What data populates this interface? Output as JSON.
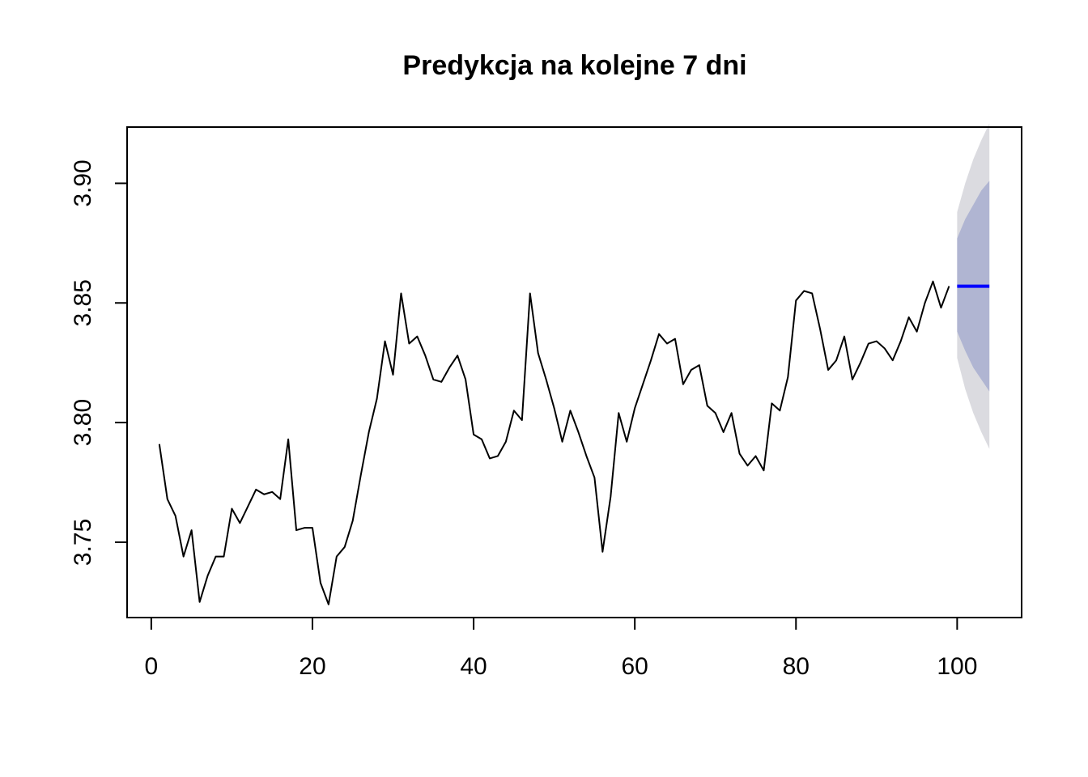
{
  "chart_data": {
    "type": "line",
    "title": "Predykcja na kolejne 7 dni",
    "xlabel": "",
    "ylabel": "",
    "xlim": [
      -3,
      108
    ],
    "ylim": [
      3.7185,
      3.9235
    ],
    "x_ticks": [
      0,
      20,
      40,
      60,
      80,
      100
    ],
    "x_tick_labels": [
      "0",
      "20",
      "40",
      "60",
      "80",
      "100"
    ],
    "y_ticks": [
      3.75,
      3.8,
      3.85,
      3.9
    ],
    "y_tick_labels": [
      "3.75",
      "3.80",
      "3.85",
      "3.90"
    ],
    "grid": false,
    "series": [
      {
        "role": "observed",
        "color": "#000000",
        "x": [
          1,
          2,
          3,
          4,
          5,
          6,
          7,
          8,
          9,
          10,
          11,
          12,
          13,
          14,
          15,
          16,
          17,
          18,
          19,
          20,
          21,
          22,
          23,
          24,
          25,
          26,
          27,
          28,
          29,
          30,
          31,
          32,
          33,
          34,
          35,
          36,
          37,
          38,
          39,
          40,
          41,
          42,
          43,
          44,
          45,
          46,
          47,
          48,
          49,
          50,
          51,
          52,
          53,
          54,
          55,
          56,
          57,
          58,
          59,
          60,
          61,
          62,
          63,
          64,
          65,
          66,
          67,
          68,
          69,
          70,
          71,
          72,
          73,
          74,
          75,
          76,
          77,
          78,
          79,
          80,
          81,
          82,
          83,
          84,
          85,
          86,
          87,
          88,
          89,
          90,
          91,
          92,
          93,
          94,
          95,
          96,
          97,
          98,
          99
        ],
        "values": [
          3.791,
          3.768,
          3.761,
          3.744,
          3.755,
          3.725,
          3.736,
          3.744,
          3.744,
          3.764,
          3.758,
          3.765,
          3.772,
          3.77,
          3.771,
          3.768,
          3.793,
          3.755,
          3.756,
          3.756,
          3.733,
          3.724,
          3.744,
          3.748,
          3.759,
          3.778,
          3.796,
          3.81,
          3.834,
          3.82,
          3.854,
          3.833,
          3.836,
          3.828,
          3.818,
          3.817,
          3.823,
          3.828,
          3.818,
          3.795,
          3.793,
          3.785,
          3.786,
          3.792,
          3.805,
          3.801,
          3.854,
          3.829,
          3.818,
          3.806,
          3.792,
          3.805,
          3.796,
          3.786,
          3.777,
          3.746,
          3.769,
          3.804,
          3.792,
          3.806,
          3.816,
          3.826,
          3.837,
          3.833,
          3.835,
          3.816,
          3.822,
          3.824,
          3.807,
          3.804,
          3.796,
          3.804,
          3.787,
          3.782,
          3.786,
          3.78,
          3.808,
          3.805,
          3.819,
          3.851,
          3.855,
          3.854,
          3.839,
          3.822,
          3.826,
          3.836,
          3.818,
          3.825,
          3.833,
          3.834,
          3.831,
          3.826,
          3.834,
          3.844,
          3.838,
          3.85,
          3.859,
          3.848,
          3.857
        ]
      },
      {
        "role": "forecast",
        "color": "#0000ff",
        "x": [
          100,
          101,
          102,
          103,
          104
        ],
        "values": [
          3.857,
          3.857,
          3.857,
          3.857,
          3.857
        ]
      }
    ],
    "intervals": [
      {
        "level": "95",
        "color": "#dbdbe0",
        "x": [
          100,
          101,
          102,
          103,
          104
        ],
        "lower": [
          3.827,
          3.814,
          3.804,
          3.796,
          3.789
        ],
        "upper": [
          3.888,
          3.9,
          3.91,
          3.918,
          3.925
        ]
      },
      {
        "level": "80",
        "color": "#b0b5d2",
        "x": [
          100,
          101,
          102,
          103,
          104
        ],
        "lower": [
          3.838,
          3.83,
          3.823,
          3.818,
          3.813
        ],
        "upper": [
          3.877,
          3.885,
          3.891,
          3.897,
          3.901
        ]
      }
    ]
  }
}
